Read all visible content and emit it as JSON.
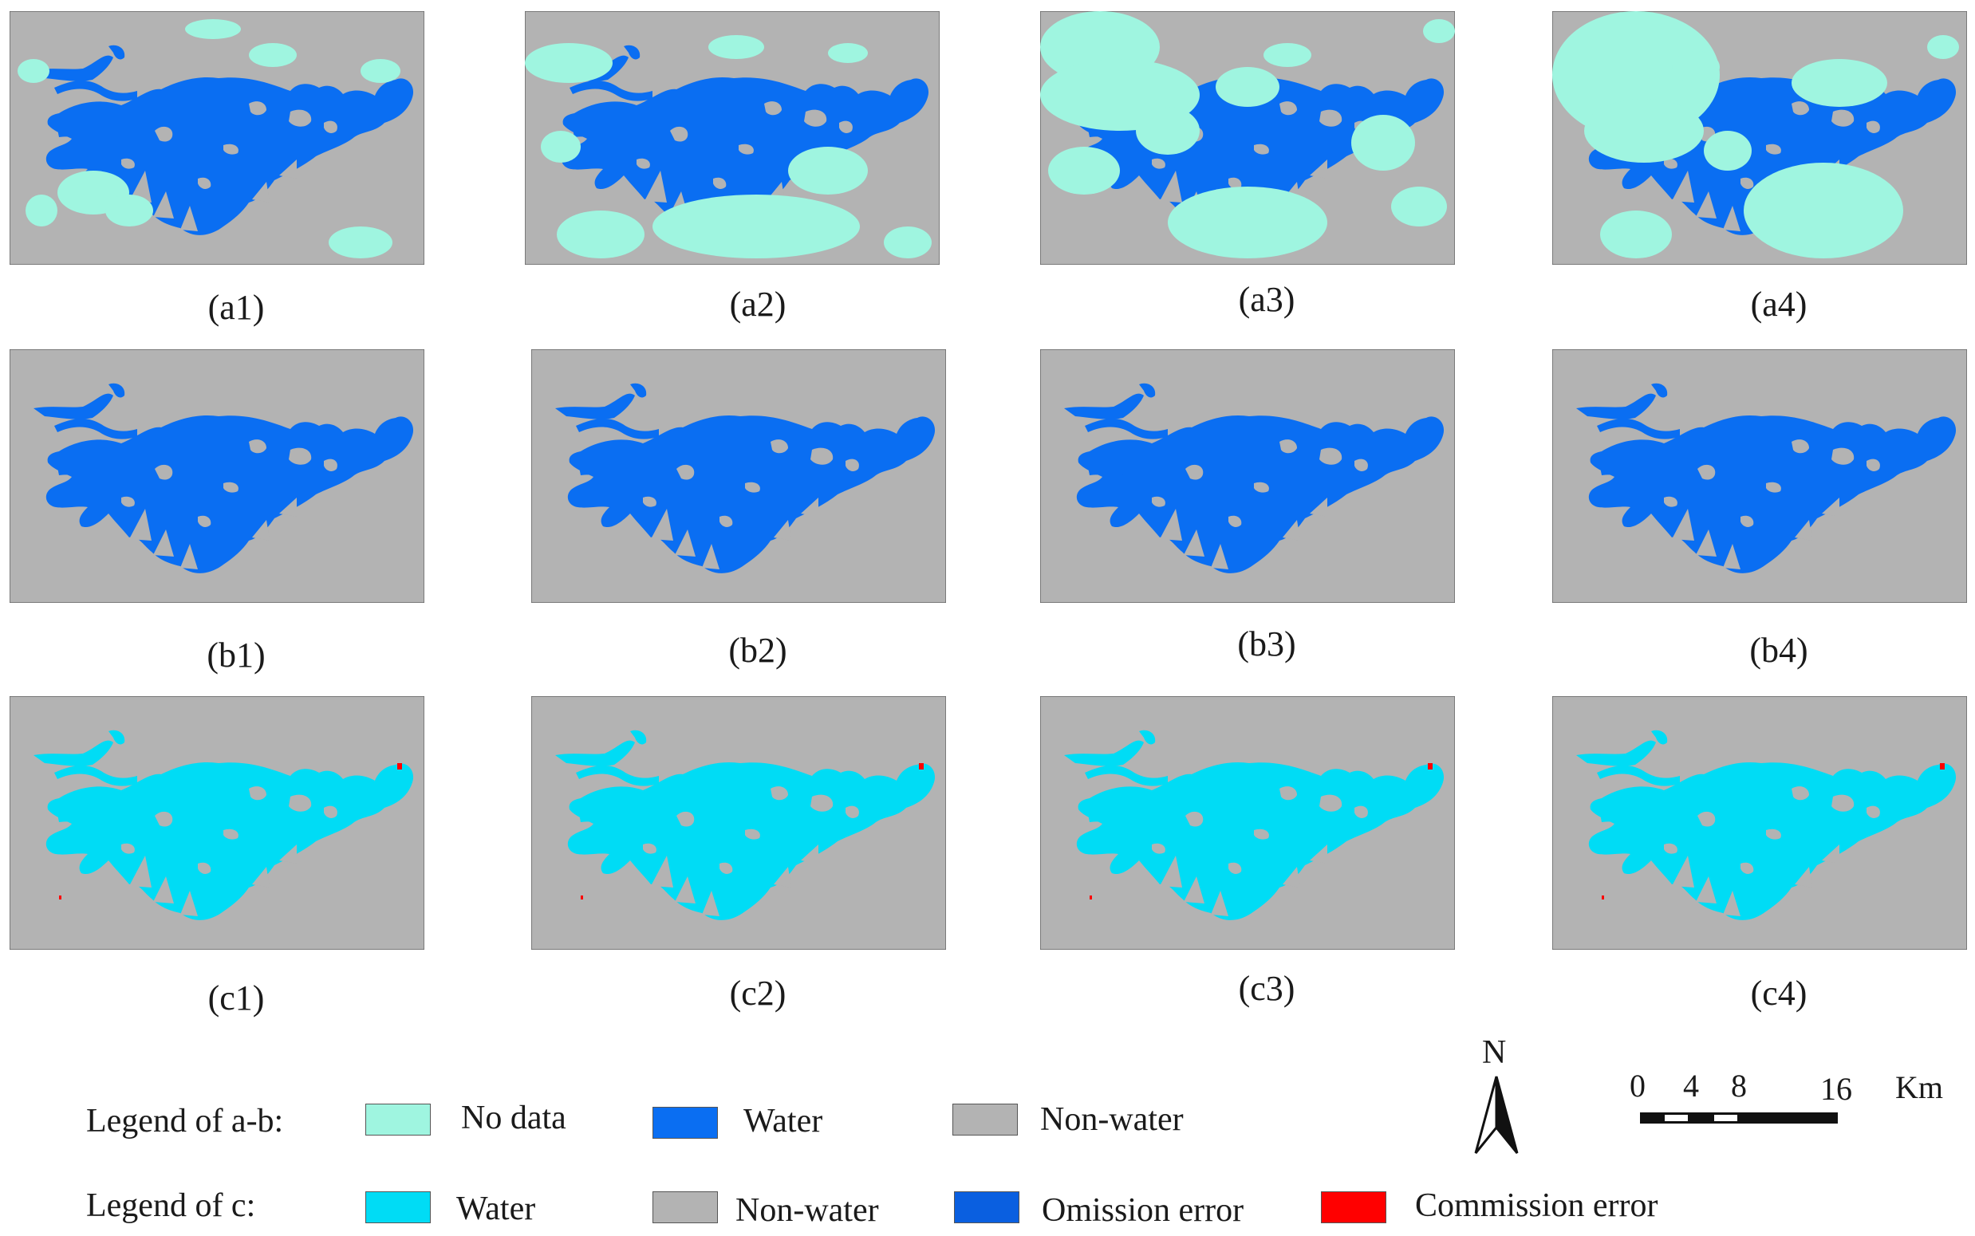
{
  "colors": {
    "no_data": "#9ff5e0",
    "water_ab": "#0a6ef2",
    "non_water": "#b3b3b3",
    "water_c": "#00dcf5",
    "omission": "#0a5fe0",
    "commission": "#ff0000"
  },
  "panels": [
    {
      "id": "a1",
      "caption": "(a1)",
      "row": "a",
      "cloud": 1
    },
    {
      "id": "a2",
      "caption": "(a2)",
      "row": "a",
      "cloud": 2
    },
    {
      "id": "a3",
      "caption": "(a3)",
      "row": "a",
      "cloud": 3
    },
    {
      "id": "a4",
      "caption": "(a4)",
      "row": "a",
      "cloud": 4
    },
    {
      "id": "b1",
      "caption": "(b1)",
      "row": "b"
    },
    {
      "id": "b2",
      "caption": "(b2)",
      "row": "b"
    },
    {
      "id": "b3",
      "caption": "(b3)",
      "row": "b"
    },
    {
      "id": "b4",
      "caption": "(b4)",
      "row": "b"
    },
    {
      "id": "c1",
      "caption": "(c1)",
      "row": "c"
    },
    {
      "id": "c2",
      "caption": "(c2)",
      "row": "c"
    },
    {
      "id": "c3",
      "caption": "(c3)",
      "row": "c"
    },
    {
      "id": "c4",
      "caption": "(c4)",
      "row": "c"
    }
  ],
  "legend_ab": {
    "title": "Legend of a-b:",
    "items": [
      {
        "label": "No data",
        "color": "#9ff5e0"
      },
      {
        "label": "Water",
        "color": "#0a6ef2"
      },
      {
        "label": "Non-water",
        "color": "#b3b3b3"
      }
    ]
  },
  "legend_c": {
    "title": "Legend of c:",
    "items": [
      {
        "label": "Water",
        "color": "#00dcf5"
      },
      {
        "label": "Non-water",
        "color": "#b3b3b3"
      },
      {
        "label": "Omission error",
        "color": "#0a5fe0"
      },
      {
        "label": "Commission error",
        "color": "#ff0000"
      }
    ]
  },
  "north_label": "N",
  "scale": {
    "ticks": [
      "0",
      "4",
      "8",
      "16"
    ],
    "unit": "Km"
  }
}
